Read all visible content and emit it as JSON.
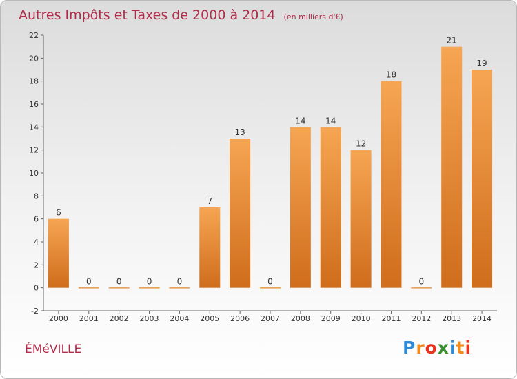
{
  "header": {
    "title": "Autres Impôts et Taxes de 2000 à 2014",
    "unit": "(en milliers d'€)"
  },
  "footer": {
    "commune": "ÉMéVILLE",
    "brand": [
      "P",
      "r",
      "o",
      "x",
      "i",
      "t",
      "i"
    ],
    "brand_colors": [
      "#2f8ad6",
      "#f28b1b",
      "#e8331e",
      "#3a8f2e",
      "#2f8ad6",
      "#f28b1b",
      "#e8331e"
    ]
  },
  "chart_data": {
    "type": "bar",
    "title": "Autres Impôts et Taxes de 2000 à 2014",
    "subtitle": "(en milliers d'€)",
    "categories": [
      "2000",
      "2001",
      "2002",
      "2003",
      "2004",
      "2005",
      "2006",
      "2007",
      "2008",
      "2009",
      "2010",
      "2011",
      "2012",
      "2013",
      "2014"
    ],
    "values": [
      6,
      0,
      0,
      0,
      0,
      7,
      13,
      0,
      14,
      14,
      12,
      18,
      0,
      21,
      19
    ],
    "value_labels": [
      "6",
      "0",
      "0",
      "0",
      "0",
      "7",
      "13",
      "0",
      "14",
      "14",
      "12",
      "18",
      "0",
      "21",
      "19"
    ],
    "yticks": [
      -2,
      0,
      2,
      4,
      6,
      8,
      10,
      12,
      14,
      16,
      18,
      20,
      22
    ],
    "ylim": [
      -2,
      22
    ],
    "grid": false,
    "legend": "none",
    "bar_color_top": "#f6a552",
    "bar_color_bottom": "#cf6d1c",
    "zero_bar_color": "#e8a25e"
  }
}
